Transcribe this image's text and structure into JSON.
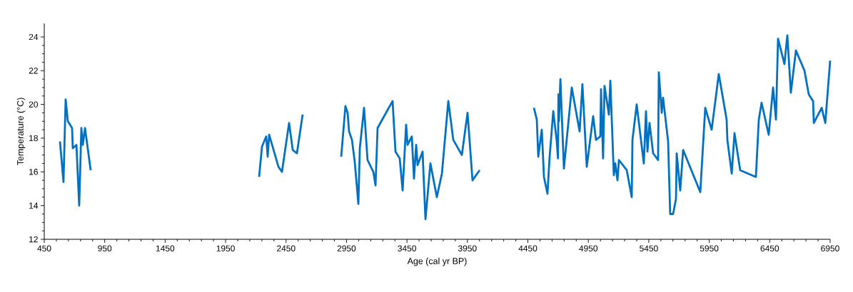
{
  "chart_data": {
    "type": "line",
    "xlabel": "Age (cal yr BP)",
    "ylabel": "Temperature (°C)",
    "xlim": [
      450,
      6950
    ],
    "xticks": [
      450,
      950,
      1450,
      1950,
      2450,
      2950,
      3450,
      3950,
      4450,
      4950,
      5450,
      5950,
      6450,
      6950
    ],
    "ylim": [
      12,
      24.8
    ],
    "yticks": [
      12,
      14,
      16,
      18,
      20,
      22,
      24
    ],
    "grid": false,
    "marker": "none",
    "line_style": "solid",
    "series": [
      {
        "color": "#0070c0",
        "x": [
          580,
          609,
          627,
          645,
          680,
          686,
          716,
          739,
          757,
          769,
          787,
          834
        ],
        "values": [
          17.8,
          15.4,
          20.3,
          19.0,
          18.6,
          17.4,
          17.6,
          14.0,
          18.6,
          17.6,
          18.6,
          16.1
        ]
      },
      {
        "color": "#0070c0",
        "x": [
          2227,
          2251,
          2280,
          2286,
          2298,
          2310,
          2387,
          2416,
          2475,
          2505,
          2540,
          2587
        ],
        "values": [
          15.7,
          17.5,
          18.0,
          18.1,
          16.9,
          18.2,
          16.3,
          16.0,
          18.9,
          17.3,
          17.1,
          19.4
        ]
      },
      {
        "color": "#0070c0",
        "x": [
          2906,
          2941,
          2959,
          2971,
          2995,
          3018,
          3048,
          3060,
          3095,
          3124,
          3172,
          3190,
          3207,
          3331,
          3355,
          3390,
          3414,
          3443,
          3455,
          3490,
          3508,
          3526,
          3538,
          3579,
          3603,
          3644,
          3697,
          3739,
          3792,
          3833,
          3904,
          3951,
          3992,
          4051
        ],
        "values": [
          16.9,
          19.9,
          19.5,
          18.4,
          17.9,
          16.6,
          14.1,
          17.4,
          19.8,
          16.7,
          16.0,
          15.2,
          18.6,
          20.2,
          17.2,
          16.8,
          14.9,
          18.8,
          17.6,
          18.1,
          15.6,
          17.6,
          16.4,
          17.2,
          13.2,
          16.5,
          14.5,
          15.9,
          20.2,
          17.9,
          17.0,
          19.5,
          15.5,
          16.1
        ]
      },
      {
        "color": "#0070c0",
        "x": [
          4500,
          4524,
          4536,
          4565,
          4583,
          4612,
          4630,
          4660,
          4689,
          4699,
          4703,
          4707,
          4719,
          4748,
          4813,
          4878,
          4901,
          4937,
          4990,
          5013,
          5049,
          5055,
          5072,
          5084,
          5120,
          5132,
          5161,
          5173,
          5191,
          5203,
          5268,
          5309,
          5315,
          5350,
          5409,
          5427,
          5439,
          5456,
          5486,
          5527,
          5533,
          5557,
          5568,
          5610,
          5627,
          5651,
          5675,
          5681,
          5710,
          5734,
          5876,
          5917,
          5970,
          6029,
          6094,
          6100,
          6136,
          6159,
          6206,
          6336,
          6360,
          6383,
          6442,
          6478,
          6502,
          6519,
          6572,
          6596,
          6625,
          6667,
          6738,
          6773,
          6809,
          6815,
          6880,
          6910,
          6950
        ],
        "values": [
          19.8,
          19.1,
          16.9,
          18.5,
          15.7,
          14.7,
          16.9,
          19.6,
          17.8,
          16.8,
          20.6,
          19.0,
          21.5,
          16.2,
          21.0,
          18.4,
          21.2,
          16.3,
          19.3,
          17.9,
          18.1,
          20.9,
          16.8,
          21.1,
          19.4,
          21.4,
          15.8,
          16.5,
          15.5,
          16.7,
          16.1,
          14.5,
          17.9,
          20.0,
          16.5,
          19.6,
          17.2,
          18.9,
          17.1,
          16.7,
          21.9,
          19.5,
          20.4,
          17.8,
          13.5,
          13.5,
          14.4,
          17.1,
          14.9,
          17.3,
          14.8,
          19.8,
          18.5,
          21.8,
          19.1,
          17.9,
          15.9,
          18.3,
          16.1,
          15.7,
          19.1,
          20.1,
          18.2,
          21.0,
          19.1,
          23.9,
          22.4,
          24.1,
          20.7,
          23.2,
          22.0,
          20.6,
          20.2,
          18.9,
          19.8,
          18.9,
          22.6
        ]
      }
    ]
  }
}
